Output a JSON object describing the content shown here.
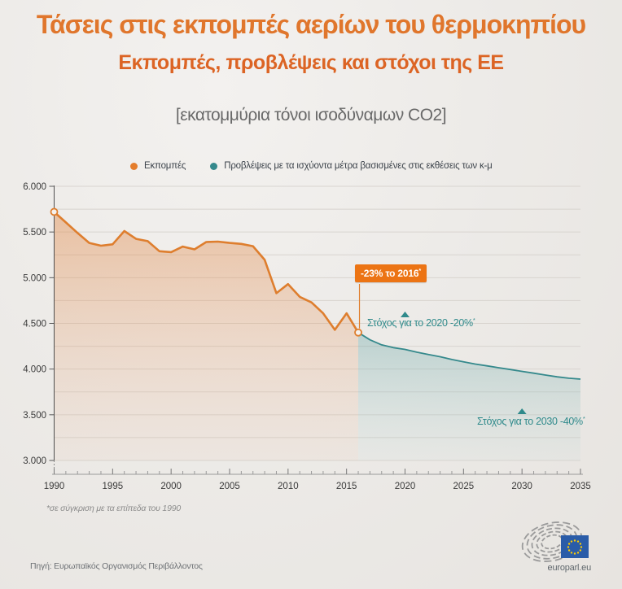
{
  "header": {
    "title": "Τάσεις στις εκπομπές αερίων του θερμοκηπίου",
    "subtitle": "Εκπομπές, προβλέψεις και στόχοι της ΕΕ",
    "units_line": "[εκατομμύρια τόνοι ισοδύναμων CO2]"
  },
  "legend": {
    "items": [
      {
        "label": "Εκπομπές",
        "color": "#E47D2C"
      },
      {
        "label": "Προβλέψεις με τα ισχύοντα μέτρα βασισμένες στις εκθέσεις των κ-μ",
        "color": "#35898C"
      }
    ]
  },
  "chart_data": {
    "type": "line",
    "title": "Τάσεις στις εκπομπές αερίων του θερμοκηπίου",
    "xlabel": "",
    "ylabel": "εκατομμύρια τόνοι ισοδύναμων CO2",
    "xlim": [
      1990,
      2035
    ],
    "ylim": [
      3000,
      6000
    ],
    "grid": "horizontal gridlines every 250",
    "legend_position": "top",
    "y_ticks": [
      {
        "value": 6000,
        "label": "6.000"
      },
      {
        "value": 5500,
        "label": "5.500"
      },
      {
        "value": 5000,
        "label": "5.000"
      },
      {
        "value": 4500,
        "label": "4.500"
      },
      {
        "value": 4000,
        "label": "4.000"
      },
      {
        "value": 3500,
        "label": "3.500"
      },
      {
        "value": 3000,
        "label": "3.000"
      }
    ],
    "x_tick_labels": [
      "1990",
      "1995",
      "2000",
      "2005",
      "2010",
      "2015",
      "2020",
      "2025",
      "2030",
      "2035"
    ],
    "series": [
      {
        "name": "Εκπομπές",
        "color": "#DE7E2E",
        "area_fill": "orange gradient fading down",
        "markers": "open circles at 1990 and 2016",
        "x": [
          1990,
          1991,
          1992,
          1993,
          1994,
          1995,
          1996,
          1997,
          1998,
          1999,
          2000,
          2001,
          2002,
          2003,
          2004,
          2005,
          2006,
          2007,
          2008,
          2009,
          2010,
          2011,
          2012,
          2013,
          2014,
          2015,
          2016
        ],
        "values": [
          5720,
          5605,
          5490,
          5380,
          5350,
          5365,
          5510,
          5425,
          5400,
          5290,
          5280,
          5340,
          5310,
          5390,
          5395,
          5380,
          5370,
          5345,
          5195,
          4830,
          4930,
          4790,
          4730,
          4610,
          4430,
          4610,
          4400
        ]
      },
      {
        "name": "Προβλέψεις με τα ισχύοντα μέτρα βασισμένες στις εκθέσεις των κ-μ",
        "color": "#35898C",
        "area_fill": "teal gradient fading down",
        "x": [
          2016,
          2017,
          2018,
          2019,
          2020,
          2021,
          2022,
          2023,
          2024,
          2025,
          2026,
          2027,
          2028,
          2029,
          2030,
          2031,
          2032,
          2033,
          2034,
          2035
        ],
        "values": [
          4400,
          4320,
          4265,
          4235,
          4215,
          4185,
          4160,
          4135,
          4105,
          4080,
          4055,
          4035,
          4015,
          3995,
          3975,
          3955,
          3935,
          3915,
          3900,
          3890
        ]
      }
    ],
    "annotation": {
      "label": "-23% το 2016",
      "asterisk": "*",
      "year": 2016,
      "value": 4400,
      "bg_color": "#EC7414"
    },
    "targets": [
      {
        "year": 2020,
        "reduction": "-20%",
        "value": 4576,
        "label": "Στόχος για το 2020 -20%",
        "asterisk": "*",
        "color": "#2F8A8B"
      },
      {
        "year": 2030,
        "reduction": "-40%",
        "value": 3432,
        "label": "Στόχος για το 2030 -40%",
        "asterisk": "*",
        "color": "#2F8A8B"
      }
    ]
  },
  "footnote": "*σε σύγκριση με τα επίπεδα του 1990",
  "source": "Πηγή: Ευρωπαϊκός Οργανισμός Περιβάλλοντος",
  "logo": {
    "caption": "europarl.eu",
    "flag_color": "#2A5CA8",
    "star_color": "#FFCC00"
  }
}
